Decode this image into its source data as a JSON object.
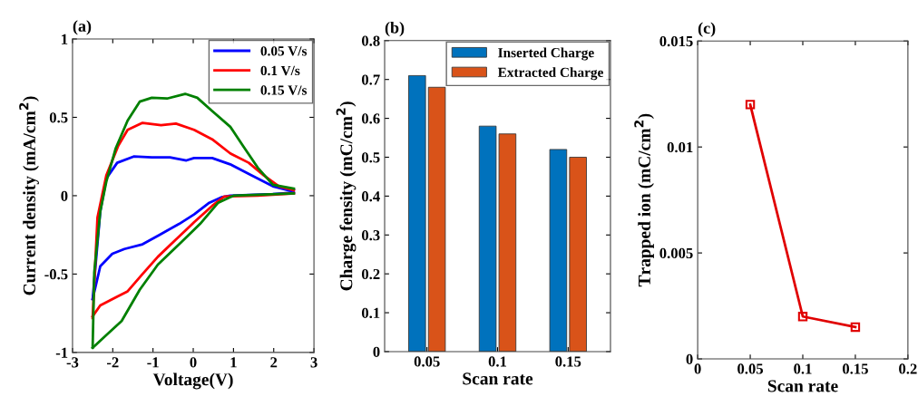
{
  "chart_data": [
    {
      "type": "line",
      "title": "(a)",
      "xlabel": "Voltage(V)",
      "ylabel": "Current density (mA/cm$^{2}$)",
      "xlim": [
        -3,
        3
      ],
      "xticks": [
        -3,
        -2,
        -1,
        0,
        1,
        2,
        3
      ],
      "ylim": [
        -1,
        1
      ],
      "yticks": [
        -1,
        -0.5,
        0,
        0.5,
        1
      ],
      "legend": "top right",
      "series": [
        {
          "name": "0.05 V/s",
          "color": "#0000ff",
          "x": [
            -2.5,
            -2.31,
            -2.16,
            -1.89,
            -1.48,
            -1.03,
            -0.58,
            -0.17,
            0.02,
            0.47,
            0.92,
            1.45,
            1.98,
            2.43,
            2.5
          ],
          "values": [
            -0.66,
            -0.1,
            0.11,
            0.21,
            0.25,
            0.245,
            0.245,
            0.225,
            0.24,
            0.24,
            0.2,
            0.13,
            0.06,
            0.03,
            0.04
          ]
        },
        {
          "color": "#0000ff",
          "x": [
            -2.5,
            -2.31,
            -2.01,
            -1.71,
            -1.26,
            -0.84,
            -0.35,
            0.02,
            0.4,
            0.7,
            0.92,
            1.98,
            2.5
          ],
          "values": [
            -0.66,
            -0.45,
            -0.37,
            -0.34,
            -0.31,
            -0.25,
            -0.18,
            -0.12,
            -0.045,
            -0.01,
            0.0,
            0.01,
            0.02
          ]
        },
        {
          "name": "0.1 V/s",
          "color": "#ff0000",
          "x": [
            -2.5,
            -2.38,
            -2.16,
            -1.86,
            -1.63,
            -1.26,
            -0.8,
            -0.43,
            0.02,
            0.47,
            0.92,
            1.38,
            1.75,
            2.13,
            2.5
          ],
          "values": [
            -0.78,
            -0.14,
            0.13,
            0.32,
            0.42,
            0.465,
            0.45,
            0.46,
            0.42,
            0.36,
            0.27,
            0.21,
            0.13,
            0.06,
            0.035
          ]
        },
        {
          "color": "#ff0000",
          "x": [
            -2.5,
            -2.31,
            -1.93,
            -1.63,
            -1.26,
            -0.88,
            -0.43,
            0.02,
            0.47,
            0.77,
            1.6,
            2.5
          ],
          "values": [
            -0.77,
            -0.7,
            -0.65,
            -0.61,
            -0.5,
            -0.39,
            -0.28,
            -0.17,
            -0.065,
            -0.005,
            0.0,
            0.015
          ]
        },
        {
          "name": "0.15 V/s",
          "color": "#008000",
          "x": [
            -2.5,
            -2.46,
            -2.31,
            -2.16,
            -1.93,
            -1.63,
            -1.33,
            -1.03,
            -0.65,
            -0.2,
            0.1,
            0.47,
            0.92,
            1.23,
            1.6,
            1.98,
            2.5
          ],
          "values": [
            -0.97,
            -0.49,
            -0.1,
            0.09,
            0.3,
            0.48,
            0.6,
            0.625,
            0.62,
            0.65,
            0.625,
            0.54,
            0.44,
            0.32,
            0.18,
            0.07,
            0.045
          ]
        },
        {
          "color": "#008000",
          "x": [
            -2.5,
            -2.16,
            -1.78,
            -1.33,
            -0.88,
            -0.35,
            0.17,
            0.62,
            1.0,
            2.5
          ],
          "values": [
            -0.97,
            -0.89,
            -0.8,
            -0.6,
            -0.44,
            -0.31,
            -0.18,
            -0.045,
            0.0,
            0.015
          ]
        }
      ]
    },
    {
      "type": "bar",
      "title": "(b)",
      "xlabel": "Scan rate",
      "ylabel": "Charge fensity (mC/cm$^{2}$)",
      "categories": [
        "0.05",
        "0.1",
        "0.15"
      ],
      "ylim": [
        0,
        0.8
      ],
      "yticks": [
        0,
        0.1,
        0.2,
        0.3,
        0.4,
        0.5,
        0.6,
        0.7,
        0.8
      ],
      "legend": "top right",
      "series": [
        {
          "name": "Inserted Charge",
          "color": "#0072bd",
          "values": [
            0.71,
            0.58,
            0.52
          ]
        },
        {
          "name": "Extracted Charge",
          "color": "#d95319",
          "values": [
            0.68,
            0.56,
            0.5
          ]
        }
      ]
    },
    {
      "type": "line",
      "title": "(c)",
      "xlabel": "Scan rate",
      "ylabel": "Trapped ion (mC/cm$^{2}$)",
      "x": [
        0.05,
        0.1,
        0.15
      ],
      "xlim": [
        0,
        0.2
      ],
      "xticks": [
        0,
        0.05,
        0.1,
        0.15,
        0.2
      ],
      "ylim": [
        0,
        0.015
      ],
      "yticks": [
        0,
        0.005,
        0.01,
        0.015
      ],
      "marker": "square",
      "series": [
        {
          "color": "#e00000",
          "values": [
            0.012,
            0.002,
            0.0015
          ]
        }
      ]
    }
  ]
}
